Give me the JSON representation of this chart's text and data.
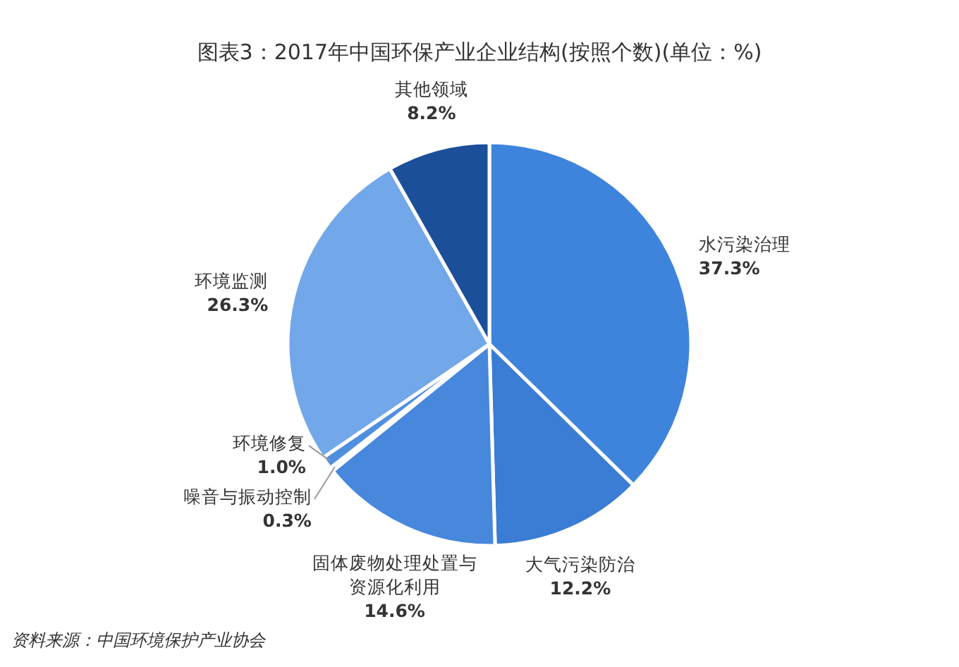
{
  "chart_data": {
    "type": "pie",
    "title": "图表3：2017年中国环保产业企业结构(按照个数)(单位：%)",
    "categories": [
      "水污染治理",
      "大气污染防治",
      "固体废物处理处置与资源化利用",
      "噪音与振动控制",
      "环境修复",
      "环境监测",
      "其他领域"
    ],
    "values": [
      37.3,
      12.2,
      14.6,
      0.3,
      1.0,
      26.3,
      8.2
    ],
    "value_labels": [
      "37.3%",
      "12.2%",
      "14.6%",
      "0.3%",
      "1.0%",
      "26.3%",
      "8.2%"
    ],
    "colors": [
      "#3f84dc",
      "#3b7cd4",
      "#4787dc",
      "#3e80d8",
      "#4f8fe0",
      "#72a7ea",
      "#1b4f9a"
    ],
    "annotations": [
      "资料来源：中国环境保护产业协会"
    ]
  }
}
